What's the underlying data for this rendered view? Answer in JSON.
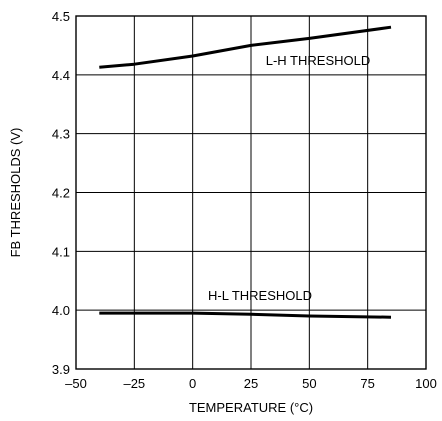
{
  "chart_data": {
    "type": "line",
    "xlabel": "TEMPERATURE (°C)",
    "ylabel": "FB THRESHOLDS (V)",
    "xlim": [
      -50,
      100
    ],
    "ylim": [
      3.9,
      4.5
    ],
    "x_ticks": [
      -50,
      -25,
      0,
      25,
      50,
      75,
      100
    ],
    "x_tick_labels": [
      "–50",
      "–25",
      "0",
      "25",
      "50",
      "75",
      "100"
    ],
    "y_ticks": [
      3.9,
      4.0,
      4.1,
      4.2,
      4.3,
      4.4,
      4.5
    ],
    "y_tick_labels": [
      "3.9",
      "4.0",
      "4.1",
      "4.2",
      "4.3",
      "4.4",
      "4.5"
    ],
    "grid": true,
    "legend": "none",
    "line_color": "#000000",
    "series": [
      {
        "name": "L-H THRESHOLD",
        "x": [
          -40,
          -25,
          0,
          25,
          50,
          85
        ],
        "y": [
          4.413,
          4.418,
          4.432,
          4.45,
          4.462,
          4.481
        ]
      },
      {
        "name": "H-L THRESHOLD",
        "x": [
          -40,
          -25,
          0,
          25,
          50,
          85
        ],
        "y": [
          3.995,
          3.995,
          3.995,
          3.993,
          3.99,
          3.988
        ]
      }
    ]
  }
}
